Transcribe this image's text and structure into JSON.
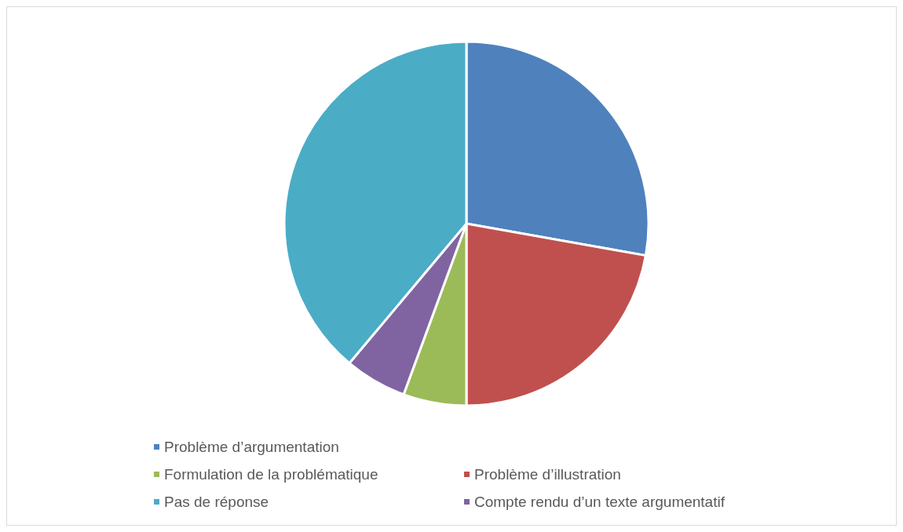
{
  "chart_data": {
    "type": "pie",
    "categories": [
      "Problème d’argumentation",
      "Problème d’illustration",
      "Formulation de la problématique",
      "Compte rendu d’un texte argumentatif",
      "Pas de réponse"
    ],
    "values": [
      27.8,
      22.2,
      5.6,
      5.5,
      38.9
    ],
    "colors": [
      "#4f81bd",
      "#c0504d",
      "#9bbb59",
      "#8064a2",
      "#4bacc6"
    ],
    "legend": "bottom"
  }
}
